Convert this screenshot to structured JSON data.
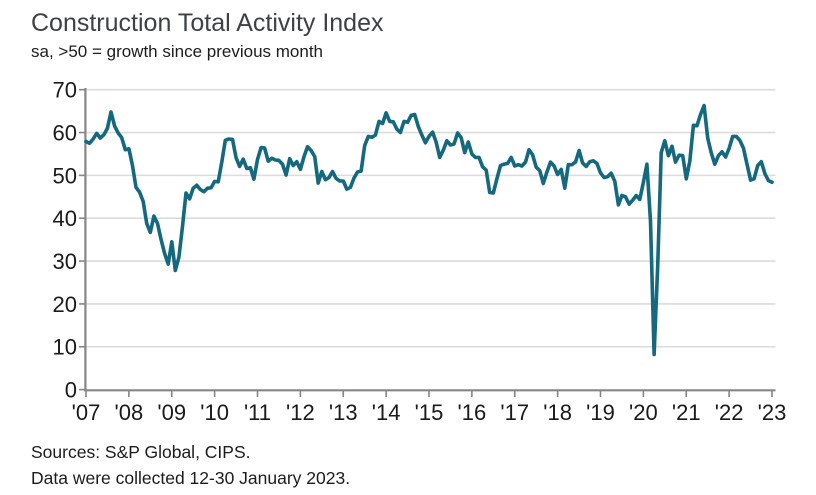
{
  "header": {
    "title": "Construction Total Activity Index",
    "subtitle": "sa, >50 = growth since previous month"
  },
  "footer": {
    "sources": "Sources: S&P Global, CIPS.",
    "note": "Data were collected 12-30 January 2023."
  },
  "colors": {
    "line": "#14697f",
    "grid": "#dcdcdc",
    "axis": "#868686",
    "tick_label": "#1a1a1a",
    "title": "#3d4045",
    "text": "#1c1c1c",
    "background": "#ffffff"
  },
  "chart_data": {
    "type": "line",
    "title": "Construction Total Activity Index",
    "subtitle": "sa, >50 = growth since previous month",
    "frequency": "monthly",
    "x_start": "2007-01",
    "x_end": "2023-01",
    "x_tick_labels": [
      "'07",
      "'08",
      "'09",
      "'10",
      "'11",
      "'12",
      "'13",
      "'14",
      "'15",
      "'16",
      "'17",
      "'18",
      "'19",
      "'20",
      "'21",
      "'22",
      "'23"
    ],
    "y_ticks": [
      0,
      10,
      20,
      30,
      40,
      50,
      60,
      70
    ],
    "ylim": [
      0,
      70
    ],
    "grid": "horizontal",
    "legend": "none",
    "series": [
      {
        "name": "Construction Total Activity Index",
        "values": [
          57.9,
          57.5,
          58.5,
          59.8,
          58.7,
          59.5,
          61.0,
          64.8,
          61.5,
          59.9,
          58.8,
          56.0,
          56.2,
          52.4,
          47.2,
          46.1,
          43.9,
          38.8,
          36.7,
          40.5,
          38.8,
          35.1,
          31.8,
          29.3,
          34.5,
          27.8,
          30.9,
          38.1,
          45.9,
          44.5,
          47.0,
          47.7,
          46.7,
          46.2,
          47.0,
          47.1,
          48.6,
          48.5,
          53.1,
          58.2,
          58.5,
          58.4,
          54.1,
          52.1,
          53.8,
          51.6,
          51.8,
          49.1,
          53.7,
          56.5,
          56.4,
          53.3,
          54.0,
          53.6,
          53.5,
          52.6,
          50.1,
          53.9,
          52.3,
          53.2,
          51.4,
          54.3,
          56.7,
          55.8,
          54.4,
          48.2,
          50.9,
          49.0,
          49.5,
          50.9,
          49.3,
          48.7,
          48.7,
          46.8,
          47.2,
          49.4,
          50.8,
          51.0,
          57.0,
          59.1,
          58.9,
          59.4,
          62.6,
          62.1,
          64.6,
          62.6,
          62.5,
          60.8,
          60.0,
          62.6,
          62.4,
          64.0,
          64.2,
          61.4,
          59.4,
          57.6,
          59.1,
          60.1,
          57.8,
          54.2,
          55.9,
          58.1,
          57.1,
          57.3,
          59.9,
          58.8,
          55.3,
          57.8,
          55.0,
          54.2,
          54.2,
          52.0,
          51.2,
          46.0,
          45.9,
          49.2,
          52.3,
          52.6,
          52.8,
          54.2,
          52.2,
          52.5,
          52.2,
          53.1,
          56.0,
          54.8,
          51.9,
          51.1,
          48.1,
          50.8,
          53.1,
          52.2,
          50.2,
          51.4,
          47.0,
          52.5,
          52.5,
          53.1,
          55.8,
          52.9,
          52.1,
          53.2,
          53.4,
          52.8,
          50.6,
          49.5,
          49.7,
          50.5,
          48.6,
          43.1,
          45.3,
          45.0,
          43.3,
          44.2,
          45.3,
          44.4,
          48.4,
          52.6,
          39.3,
          8.2,
          28.9,
          55.3,
          58.1,
          54.6,
          56.8,
          53.1,
          54.7,
          54.6,
          49.2,
          53.3,
          61.7,
          61.6,
          64.2,
          66.3,
          58.7,
          55.2,
          52.6,
          54.6,
          55.5,
          54.3,
          56.3,
          59.1,
          59.1,
          58.2,
          56.4,
          52.6,
          48.9,
          49.2,
          52.3,
          53.2,
          50.4,
          48.8,
          48.4
        ]
      }
    ]
  }
}
